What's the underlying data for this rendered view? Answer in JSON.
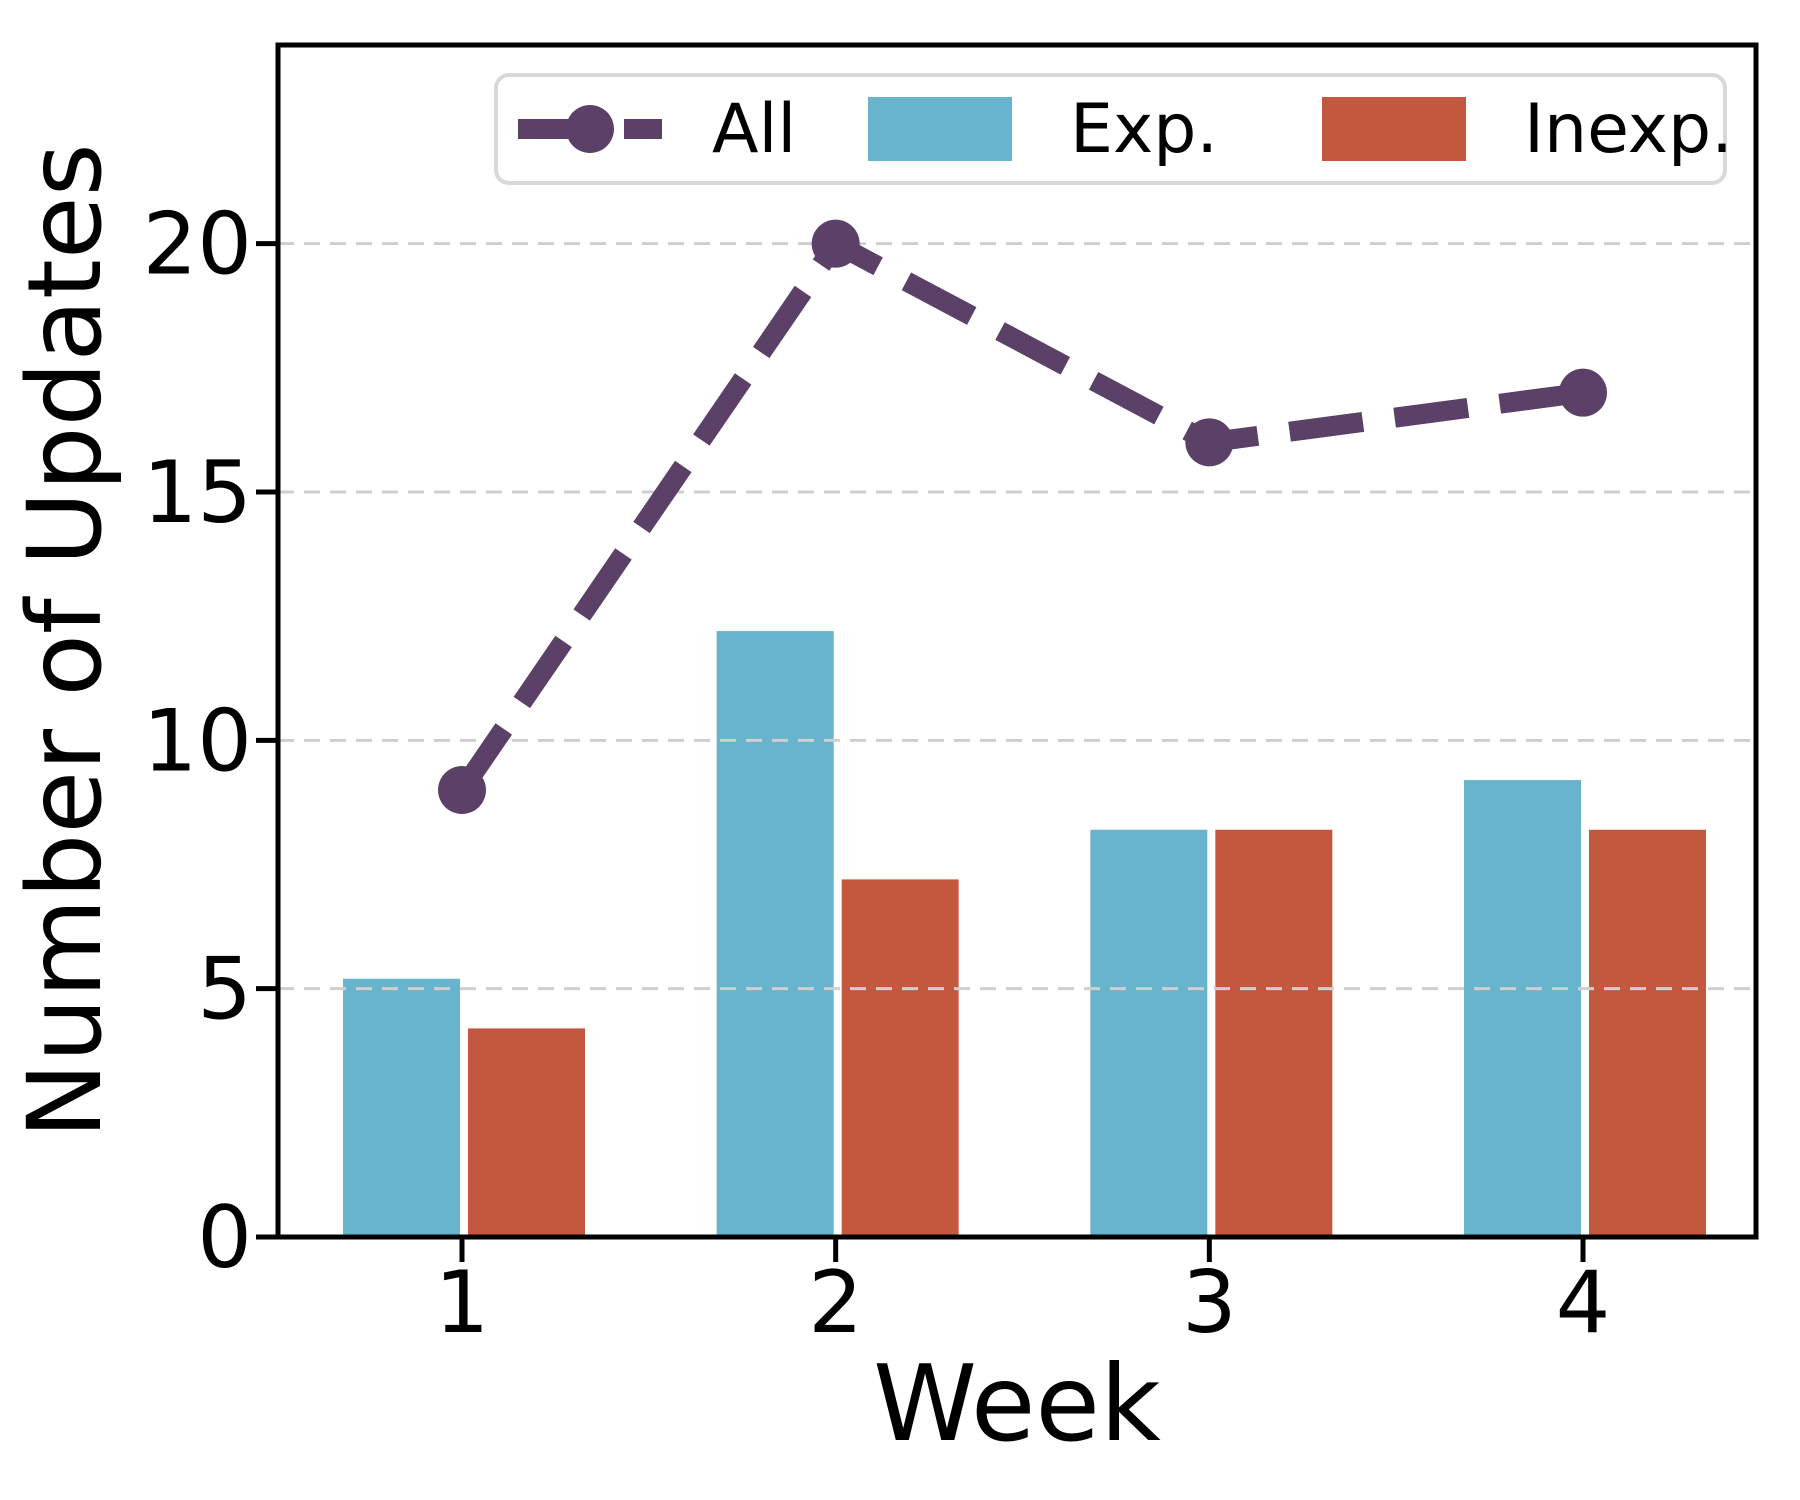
{
  "chart_data": {
    "type": "combo",
    "title": "",
    "xlabel": "Week",
    "ylabel": "Number of Updates",
    "x": [
      1,
      2,
      3,
      4
    ],
    "xticklabels": [
      "1",
      "2",
      "3",
      "4"
    ],
    "yticks": [
      0,
      5,
      10,
      15,
      20
    ],
    "xlim": [
      0.51,
      4.46
    ],
    "ylim": [
      0,
      24
    ],
    "grid": true,
    "grid_style": "dashed",
    "legend_position": "upper-center-inside",
    "series": [
      {
        "name": "All",
        "type": "line",
        "style": "dashed",
        "marker": "circle",
        "color": "#5B4168",
        "values": [
          9,
          20,
          16,
          17
        ]
      },
      {
        "name": "Exp.",
        "type": "bar",
        "color": "#69B4CD",
        "values": [
          5.2,
          12.2,
          8.2,
          9.2
        ]
      },
      {
        "name": "Inexp.",
        "type": "bar",
        "color": "#C4583E",
        "values": [
          4.2,
          7.2,
          8.2,
          8.2
        ]
      }
    ],
    "colors": {
      "axis": "#000000",
      "grid": "#CFCFCF",
      "legend_border": "#D9D9D9",
      "background": "#FFFFFF"
    }
  }
}
